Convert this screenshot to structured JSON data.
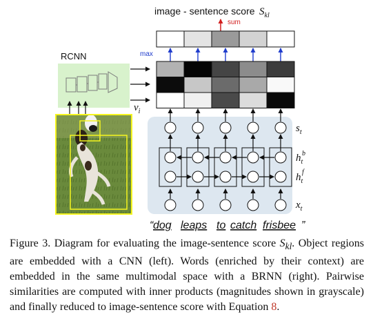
{
  "figure": {
    "score_title": "image - sentence score",
    "score_symbol": "S",
    "score_subscript": "kl",
    "sum_label": "sum",
    "max_label": "max",
    "rcnn_label": "RCNN",
    "region_vector_symbol": "v",
    "region_vector_subscript": "i",
    "s_t_symbol": "s",
    "s_t_subscript": "t",
    "h_back_symbol": "h",
    "h_back_subscript": "t",
    "h_back_superscript": "b",
    "h_fwd_symbol": "h",
    "h_fwd_subscript": "t",
    "h_fwd_superscript": "f",
    "x_t_symbol": "x",
    "x_t_subscript": "t",
    "open_quote": "“",
    "close_quote": "”",
    "words": [
      "dog",
      "leaps",
      "to",
      "catch",
      "frisbee"
    ],
    "score_row_shades": [
      "#ffffff",
      "#e4e4e4",
      "#9a9a9a",
      "#d3d3d3",
      "#ffffff"
    ],
    "similarity_matrix_shades": [
      [
        "#b2b2b2",
        "#050505",
        "#454545",
        "#8c8c8c",
        "#3c3c3c"
      ],
      [
        "#0c0c0c",
        "#c7c7c7",
        "#6b6b6b",
        "#a9a9a9",
        "#f9f9f9"
      ],
      [
        "#ffffff",
        "#f0f0f0",
        "#4a4a4a",
        "#dcdcdc",
        "#0a0a0a"
      ]
    ],
    "colors": {
      "rnn_panel": "#dde7f0",
      "cnn_panel": "#d8f2cc",
      "region_box": "#f5f51e",
      "max_arrow": "#1f3ccc",
      "sum_arrow": "#d21f1f"
    }
  },
  "caption": {
    "fig_label": "Figure 3.",
    "text_before_symbol": " Diagram for evaluating the image-sentence score ",
    "symbol": "S",
    "symbol_subscript": "kl",
    "text_after_symbol": ". Object regions are embedded with a CNN (left). Words (enriched by their context) are embedded in the same multimodal space with a BRNN (right).  Pairwise similarities are computed with inner products (magnitudes shown in grayscale) and finally reduced to image-sentence score with Equation ",
    "equation_ref": "8",
    "text_end": "."
  }
}
